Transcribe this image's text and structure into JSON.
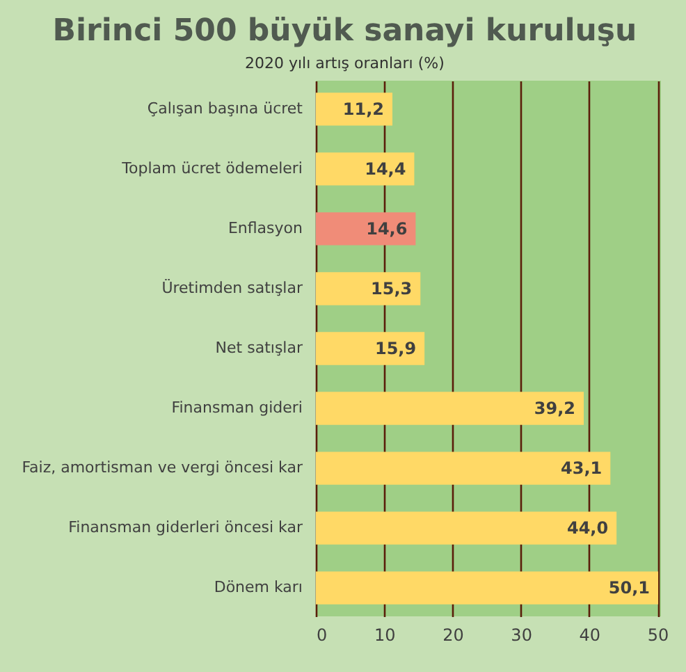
{
  "chart_data": {
    "type": "bar",
    "orientation": "horizontal",
    "title": "Birinci 500 büyük sanayi kuruluşu",
    "subtitle": "2020 yılı artış oranları (%)",
    "categories": [
      "Çalışan başına ücret",
      "Toplam ücret ödemeleri",
      "Enflasyon",
      "Üretimden satışlar",
      "Net satışlar",
      "Finansman gideri",
      "Faiz, amortisman ve vergi öncesi kar",
      "Finansman giderleri öncesi kar",
      "Dönem karı"
    ],
    "values": [
      11.2,
      14.4,
      14.6,
      15.3,
      15.9,
      39.2,
      43.1,
      44.0,
      50.1
    ],
    "colors": [
      "#ffd966",
      "#ffd966",
      "#f08c78",
      "#ffd966",
      "#ffd966",
      "#ffd966",
      "#ffd966",
      "#ffd966",
      "#ffd966"
    ],
    "value_labels": [
      "11,2",
      "14,4",
      "14,6",
      "15,3",
      "15,9",
      "39,2",
      "43,1",
      "44,0",
      "50,1"
    ],
    "xlim": [
      0,
      50.5
    ],
    "xticks": [
      0,
      10,
      20,
      30,
      40,
      50
    ],
    "grid": "x"
  }
}
